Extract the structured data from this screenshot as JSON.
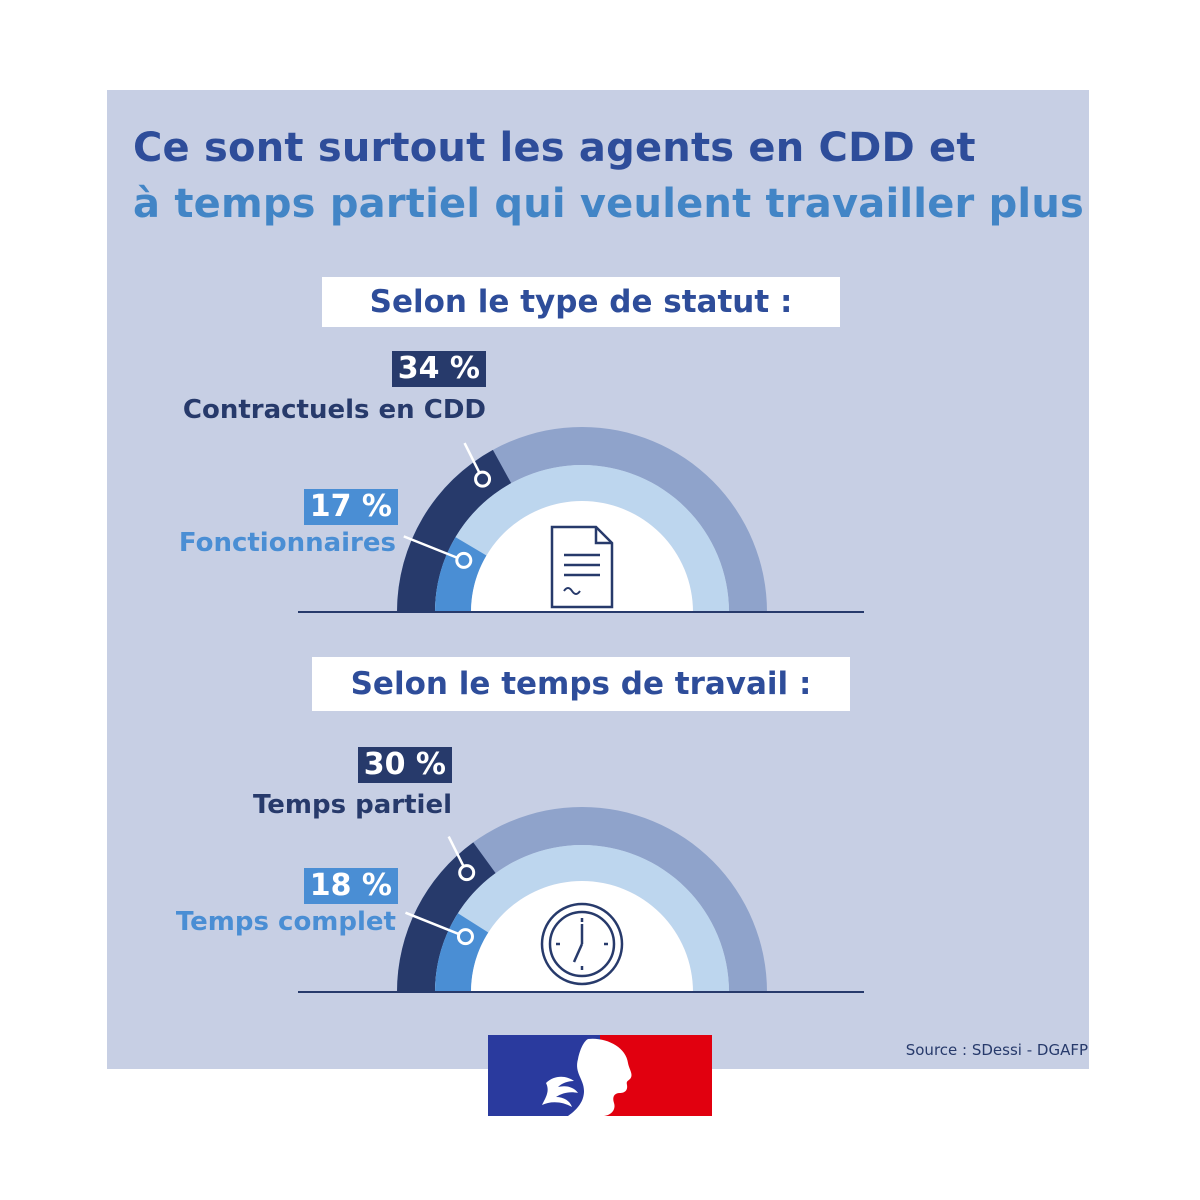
{
  "title": {
    "line1": "Ce sont surtout les agents en CDD et",
    "line2": "à temps partiel qui veulent travailler plus"
  },
  "colors": {
    "background_panel": "#c7cfe4",
    "title_dark": "#2e4d9a",
    "title_light": "#4285c6",
    "arc_dark": "#273a6b",
    "arc_outer_track": "#8fa3cb",
    "arc_light": "#4a8ed4",
    "arc_inner_track": "#bdd6ee",
    "logo_blue": "#2a3a9e",
    "logo_red": "#e1000f"
  },
  "chart_data": [
    {
      "type": "gauge",
      "title": "Selon le type de statut :",
      "icon": "document-icon",
      "series": [
        {
          "name": "Contractuels en CDD",
          "value": 34,
          "label": "34 %"
        },
        {
          "name": "Fonctionnaires",
          "value": 17,
          "label": "17 %"
        }
      ]
    },
    {
      "type": "gauge",
      "title": "Selon le temps de travail :",
      "icon": "clock-icon",
      "series": [
        {
          "name": "Temps partiel",
          "value": 30,
          "label": "30 %"
        },
        {
          "name": "Temps complet",
          "value": 18,
          "label": "18 %"
        }
      ]
    }
  ],
  "source": "Source : SDessi - DGAFP",
  "logo": "marianne-logo"
}
